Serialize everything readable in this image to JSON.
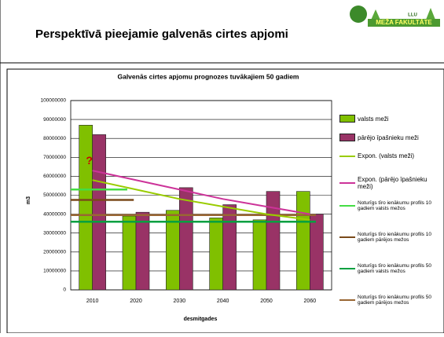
{
  "header": {
    "title": "Perspektīvā pieejamie galvenās cirtes apjomi",
    "logo_small": "LLU",
    "logo": "MEŽA FAKULTĀTE"
  },
  "chart_data": {
    "type": "bar",
    "title": "Galvenās cirtes apjomu prognozes tuvākajiem 50 gadiem",
    "x_label": "desmitgades",
    "y_label": "m3",
    "categories": [
      "2010",
      "2020",
      "2030",
      "2040",
      "2050",
      "2060"
    ],
    "series": [
      {
        "name": "valsts meži",
        "color": "#80c000",
        "values": [
          87000000,
          39000000,
          42000000,
          38000000,
          37000000,
          52000000
        ]
      },
      {
        "name": "pārējo īpašnieku meži",
        "color": "#993366",
        "values": [
          82000000,
          41000000,
          54000000,
          45000000,
          52000000,
          40000000
        ]
      }
    ],
    "trendlines": [
      {
        "name": "Expon. (valsts meži)",
        "color": "#99cc00",
        "values": [
          58000000,
          53000000,
          48000000,
          44000000,
          40000000,
          37000000
        ]
      },
      {
        "name": "Expon. (pārējo īpašnieku meži)",
        "color": "#cc3399",
        "values": [
          63000000,
          58000000,
          53000000,
          48000000,
          44000000,
          40000000
        ]
      }
    ],
    "reference_lines": [
      {
        "name": "Noturīgs tīro ienākumu profils 10 gadiem valsts mežos",
        "color": "#44dd44",
        "value": 53000000
      },
      {
        "name": "Noturīgs tīro ienākumu profils 10 gadiem pārējos mežos",
        "color": "#7a4a1a",
        "value": 47500000
      },
      {
        "name": "Noturīgs tīro ienākumu profils 50 gadiem valsts mežos",
        "color": "#00a040",
        "value": 36000000
      },
      {
        "name": "Noturīgs tīro ienākumu profils 50 gadiem pārējos mežos",
        "color": "#996633",
        "value": 39500000
      }
    ],
    "annotation": "?",
    "ylim": [
      0,
      100000000
    ],
    "yticks": [
      0,
      10000000,
      20000000,
      30000000,
      40000000,
      50000000,
      60000000,
      70000000,
      80000000,
      90000000,
      100000000
    ],
    "grid": true
  }
}
